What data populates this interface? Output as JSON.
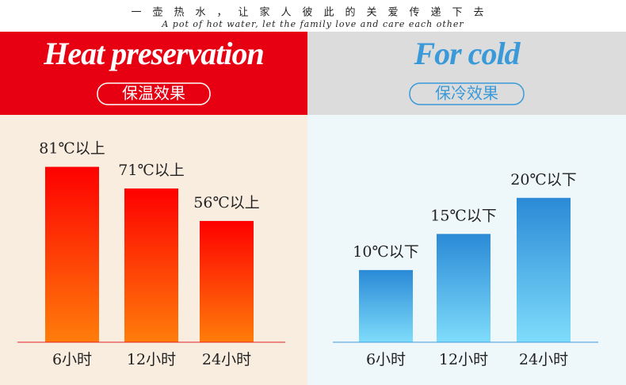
{
  "header": {
    "slogan": "一壶热水，让家人彼此的关爱传递下去",
    "tagline": "A pot of hot water, let the family love and care each other"
  },
  "chart_data": [
    {
      "type": "bar",
      "title": "Heat preservation",
      "subtitle": "保温效果",
      "categories": [
        "6小时",
        "12小时",
        "24小时"
      ],
      "values": [
        81,
        71,
        56
      ],
      "value_labels": [
        "81℃以上",
        "71℃以上",
        "56℃以上"
      ],
      "gradient": [
        "#fe0000",
        "#ff7d0a"
      ],
      "ylim": [
        0,
        90
      ]
    },
    {
      "type": "bar",
      "title": "For cold",
      "subtitle": "保冷效果",
      "categories": [
        "6小时",
        "12小时",
        "24小时"
      ],
      "values": [
        10,
        15,
        20
      ],
      "value_labels": [
        "10℃以下",
        "15℃以下",
        "20℃以下"
      ],
      "gradient": [
        "#2a8ad6",
        "#7fdcfb"
      ],
      "ylim": [
        0,
        27
      ]
    }
  ]
}
